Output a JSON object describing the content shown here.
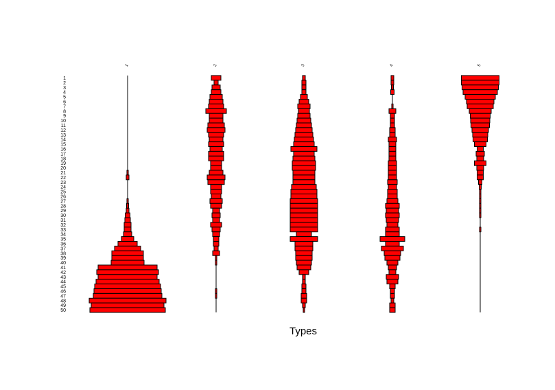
{
  "chart_data": {
    "type": "bar",
    "style": "battleship / centered horizontal bars (one column per type)",
    "xlabel": "Types",
    "bar_color": "#ff0000",
    "bar_edge_color": "#000000",
    "rows": [
      "1",
      "2",
      "3",
      "4",
      "5",
      "6",
      "7",
      "8",
      "9",
      "10",
      "11",
      "12",
      "13",
      "14",
      "15",
      "16",
      "17",
      "18",
      "19",
      "20",
      "21",
      "22",
      "23",
      "24",
      "25",
      "26",
      "27",
      "28",
      "29",
      "30",
      "31",
      "32",
      "33",
      "34",
      "35",
      "36",
      "37",
      "38",
      "39",
      "40",
      "41",
      "42",
      "43",
      "44",
      "45",
      "46",
      "47",
      "48",
      "49",
      "50"
    ],
    "columns": [
      "1",
      "2",
      "3",
      "4",
      "5"
    ],
    "series": [
      {
        "name": "1",
        "values": [
          0,
          0,
          0,
          0,
          0,
          0,
          0,
          0,
          0,
          0,
          0,
          0,
          0,
          0,
          0,
          0,
          0,
          0,
          0,
          0,
          2,
          4,
          0,
          0,
          0,
          0,
          2,
          3,
          4,
          7,
          8,
          10,
          10,
          12,
          18,
          28,
          38,
          46,
          46,
          48,
          86,
          90,
          86,
          92,
          96,
          98,
          100,
          112,
          106,
          110
        ]
      },
      {
        "name": "2",
        "values": [
          14,
          6,
          12,
          14,
          18,
          20,
          22,
          30,
          20,
          20,
          24,
          26,
          22,
          20,
          22,
          18,
          22,
          22,
          16,
          16,
          20,
          26,
          24,
          16,
          16,
          14,
          18,
          16,
          10,
          12,
          10,
          16,
          12,
          10,
          8,
          8,
          6,
          10,
          2,
          2,
          0,
          0,
          0,
          0,
          0,
          2,
          2,
          0,
          0,
          0
        ]
      },
      {
        "name": "3",
        "values": [
          4,
          6,
          6,
          6,
          10,
          14,
          18,
          16,
          18,
          20,
          22,
          24,
          26,
          28,
          30,
          38,
          30,
          32,
          34,
          34,
          32,
          32,
          32,
          36,
          38,
          38,
          40,
          40,
          40,
          40,
          40,
          40,
          40,
          22,
          40,
          26,
          26,
          24,
          24,
          22,
          20,
          14,
          4,
          4,
          6,
          6,
          8,
          8,
          4,
          2
        ]
      },
      {
        "name": "4",
        "values": [
          4,
          4,
          3,
          5,
          0,
          0,
          2,
          10,
          6,
          6,
          6,
          8,
          8,
          12,
          10,
          10,
          10,
          10,
          12,
          12,
          12,
          12,
          14,
          12,
          14,
          14,
          16,
          20,
          18,
          20,
          18,
          16,
          20,
          20,
          36,
          20,
          32,
          24,
          22,
          16,
          12,
          10,
          18,
          16,
          8,
          6,
          6,
          4,
          8,
          8
        ]
      },
      {
        "name": "5",
        "values": [
          55,
          55,
          53,
          50,
          44,
          40,
          38,
          32,
          29,
          28,
          27,
          24,
          22,
          21,
          17,
          9,
          12,
          10,
          17,
          10,
          9,
          9,
          5,
          3,
          2,
          2,
          2,
          2,
          2,
          2,
          0,
          0,
          2,
          0,
          0,
          0,
          0,
          0,
          0,
          0,
          0,
          0,
          0,
          0,
          0,
          0,
          0,
          0,
          0,
          0
        ]
      }
    ]
  }
}
